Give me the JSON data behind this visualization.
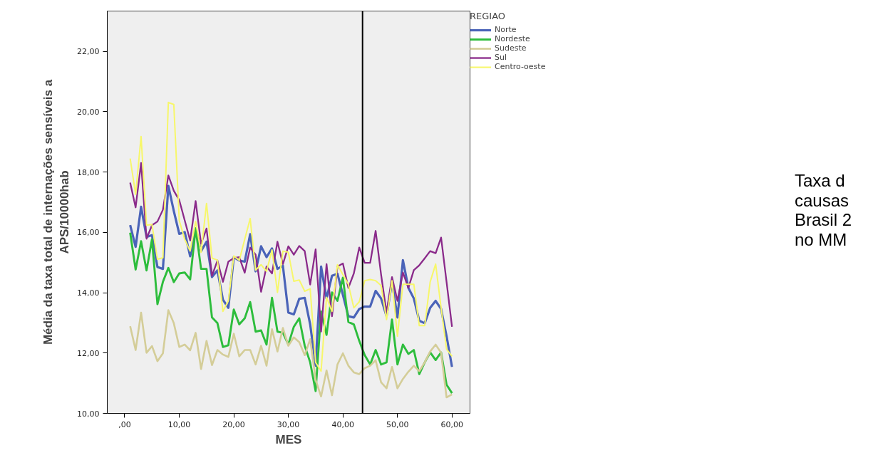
{
  "chart_data": {
    "type": "line",
    "xlabel": "MES",
    "ylabel": "Média da taxa total de internações sensíveis a\nAPS/10000hab",
    "legend_title": "REGIAO",
    "x": [
      1,
      2,
      3,
      4,
      5,
      6,
      7,
      8,
      9,
      10,
      11,
      12,
      13,
      14,
      15,
      16,
      17,
      18,
      19,
      20,
      21,
      22,
      23,
      24,
      25,
      26,
      27,
      28,
      29,
      30,
      31,
      32,
      33,
      34,
      35,
      36,
      37,
      38,
      39,
      40,
      41,
      42,
      43,
      44,
      45,
      46,
      47,
      48,
      49,
      50,
      51,
      52,
      53,
      54,
      55,
      56,
      57,
      58,
      59,
      60
    ],
    "series": [
      {
        "name": "Norte",
        "color": "#4a63b8",
        "values": [
          16.24,
          15.52,
          16.85,
          15.85,
          15.91,
          14.85,
          14.79,
          17.54,
          16.71,
          15.95,
          16.01,
          15.21,
          16.13,
          15.38,
          15.69,
          14.52,
          14.74,
          13.77,
          13.5,
          15.18,
          15.07,
          15.03,
          15.94,
          14.71,
          15.54,
          15.18,
          15.47,
          14.79,
          14.89,
          13.34,
          13.28,
          13.8,
          13.83,
          12.95,
          11.58,
          14.87,
          13.81,
          14.56,
          14.63,
          13.93,
          13.22,
          13.18,
          13.46,
          13.54,
          13.54,
          14.06,
          13.81,
          13.22,
          14.36,
          13.18,
          15.08,
          14.16,
          13.81,
          13.07,
          12.99,
          13.5,
          13.73,
          13.46,
          12.56,
          11.54
        ]
      },
      {
        "name": "Nordeste",
        "color": "#2dbd3c",
        "values": [
          15.99,
          14.77,
          15.71,
          14.74,
          15.77,
          13.62,
          14.36,
          14.82,
          14.35,
          14.64,
          14.67,
          14.44,
          16.13,
          14.79,
          14.79,
          13.18,
          12.99,
          12.2,
          12.26,
          13.44,
          12.95,
          13.15,
          13.69,
          12.71,
          12.75,
          12.28,
          13.83,
          12.71,
          12.67,
          12.28,
          12.87,
          13.15,
          12.24,
          11.69,
          10.74,
          13.38,
          12.6,
          14.01,
          13.73,
          14.5,
          13.03,
          12.95,
          12.4,
          11.93,
          11.62,
          12.1,
          11.62,
          11.69,
          13.11,
          11.62,
          12.28,
          11.97,
          12.1,
          11.3,
          11.69,
          12.02,
          11.77,
          12.02,
          10.95,
          10.67
        ]
      },
      {
        "name": "Sudeste",
        "color": "#d4cd98",
        "values": [
          12.89,
          12.1,
          13.34,
          12.01,
          12.23,
          11.73,
          11.99,
          13.42,
          12.99,
          12.2,
          12.28,
          12.09,
          12.67,
          11.47,
          12.4,
          11.6,
          12.1,
          11.95,
          11.87,
          12.64,
          11.89,
          12.1,
          12.1,
          11.62,
          12.24,
          11.58,
          12.79,
          12.05,
          12.83,
          12.24,
          12.52,
          12.36,
          11.93,
          12.46,
          11.11,
          10.56,
          11.42,
          10.6,
          11.62,
          11.99,
          11.58,
          11.36,
          11.3,
          11.5,
          11.58,
          11.76,
          11.03,
          10.83,
          11.54,
          10.83,
          11.14,
          11.38,
          11.58,
          11.4,
          11.69,
          12.05,
          12.28,
          12.01,
          10.53,
          10.63
        ]
      },
      {
        "name": "Sul",
        "color": "#8a2a8a",
        "values": [
          17.65,
          16.83,
          18.3,
          15.79,
          16.24,
          16.36,
          16.75,
          17.89,
          17.38,
          17.07,
          16.4,
          15.73,
          17.04,
          15.62,
          16.13,
          14.56,
          15.07,
          14.36,
          15.03,
          15.15,
          15.18,
          14.66,
          15.5,
          15.26,
          14.03,
          14.87,
          14.64,
          15.69,
          14.95,
          15.54,
          15.26,
          15.55,
          15.38,
          14.27,
          15.44,
          12.71,
          14.95,
          13.22,
          14.87,
          14.97,
          14.16,
          14.64,
          15.5,
          14.99,
          14.99,
          16.05,
          14.6,
          13.34,
          14.52,
          13.73,
          14.67,
          14.16,
          14.75,
          14.91,
          15.14,
          15.38,
          15.31,
          15.83,
          14.36,
          12.87
        ]
      },
      {
        "name": "Centro-oeste",
        "color": "#f7f76a",
        "values": [
          18.45,
          17.26,
          19.18,
          16.24,
          16.26,
          15.11,
          15.16,
          20.31,
          20.24,
          16.4,
          15.77,
          15.38,
          16.36,
          15.34,
          16.96,
          15.15,
          15.08,
          13.38,
          13.73,
          15.22,
          15.07,
          15.77,
          16.46,
          14.75,
          14.93,
          14.71,
          15.42,
          14.01,
          15.38,
          15.34,
          14.38,
          14.42,
          14.05,
          14.13,
          11.69,
          11.4,
          13.85,
          13.38,
          14.93,
          14.6,
          14.28,
          13.5,
          13.7,
          14.4,
          14.44,
          14.4,
          14.24,
          13.11,
          14.4,
          12.56,
          14.28,
          14.28,
          14.28,
          12.91,
          12.91,
          14.36,
          14.95,
          13.5,
          12.13,
          11.89
        ]
      }
    ],
    "xlim": [
      -3.2,
      63.3
    ],
    "ylim": [
      10,
      23.34
    ],
    "xticks": [
      {
        "value": 0,
        "label": ",00"
      },
      {
        "value": 10,
        "label": "10,00"
      },
      {
        "value": 20,
        "label": "20,00"
      },
      {
        "value": 30,
        "label": "30,00"
      },
      {
        "value": 40,
        "label": "40,00"
      },
      {
        "value": 50,
        "label": "50,00"
      },
      {
        "value": 60,
        "label": "60,00"
      }
    ],
    "yticks": [
      {
        "value": 10,
        "label": "10,00"
      },
      {
        "value": 12,
        "label": "12,00"
      },
      {
        "value": 14,
        "label": "14,00"
      },
      {
        "value": 16,
        "label": "16,00"
      },
      {
        "value": 18,
        "label": "18,00"
      },
      {
        "value": 20,
        "label": "20,00"
      },
      {
        "value": 22,
        "label": "22,00"
      }
    ],
    "ref_lines": [
      {
        "axis": "x",
        "value": 43.6,
        "color": "#000000"
      }
    ],
    "annotations": [
      "Taxa d\ncausas\nBrasil 2\nno MM"
    ],
    "grid": false,
    "legend": "top right",
    "line_style": "solid"
  }
}
